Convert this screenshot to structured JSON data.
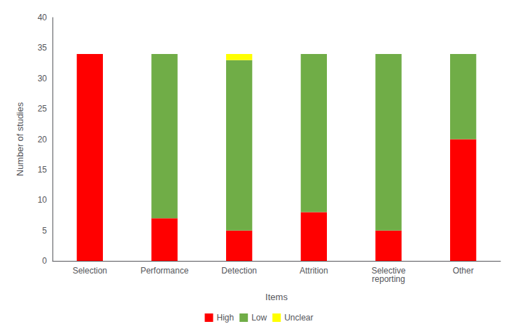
{
  "chart_data": {
    "type": "bar",
    "xlabel": "Items",
    "ylabel": "Number of studies",
    "categories": [
      "Selection",
      "Performance",
      "Detection",
      "Attrition",
      "Selective\nreporting",
      "Other"
    ],
    "series": [
      {
        "name": "High",
        "color": "#FF0000",
        "values": [
          34,
          7,
          5,
          8,
          5,
          20
        ]
      },
      {
        "name": "Low",
        "color": "#70AD47",
        "values": [
          0,
          27,
          28,
          26,
          29,
          14
        ]
      },
      {
        "name": "Unclear",
        "color": "#FFFF00",
        "values": [
          0,
          0,
          1,
          0,
          0,
          0
        ]
      }
    ],
    "ylim": [
      0,
      40
    ],
    "yticks": [
      0,
      5,
      10,
      15,
      20,
      25,
      30,
      35,
      40
    ],
    "stacked": true,
    "grid": false,
    "legend": "bottom"
  }
}
